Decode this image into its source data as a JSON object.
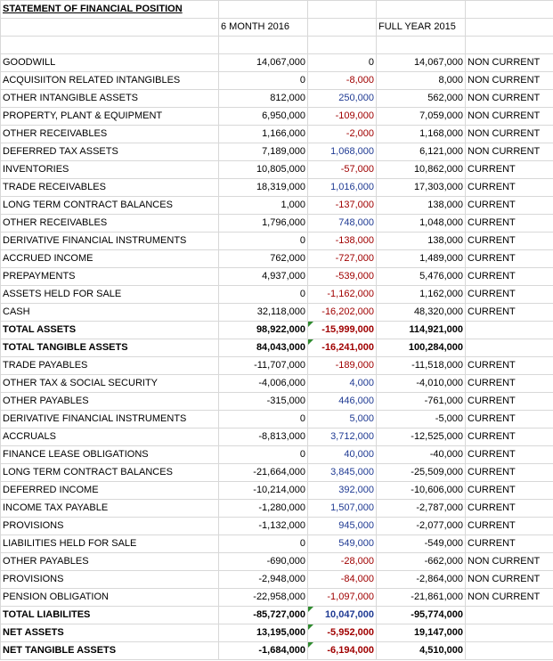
{
  "title": "STATEMENT OF FINANCIAL POSITION",
  "headers": [
    "6 MONTH 2016",
    "FULL YEAR 2015"
  ],
  "table": {
    "rows": [
      [
        "GOODWILL",
        "14,067,000",
        "0",
        "14,067,000",
        "NON CURRENT"
      ],
      [
        "ACQUISIITON RELATED INTANGIBLES",
        "0",
        "-8,000",
        "8,000",
        "NON CURRENT"
      ],
      [
        "OTHER INTANGIBLE ASSETS",
        "812,000",
        "250,000",
        "562,000",
        "NON CURRENT"
      ],
      [
        "PROPERTY, PLANT & EQUIPMENT",
        "6,950,000",
        "-109,000",
        "7,059,000",
        "NON CURRENT"
      ],
      [
        "OTHER RECEIVABLES",
        "1,166,000",
        "-2,000",
        "1,168,000",
        "NON CURRENT"
      ],
      [
        "DEFERRED TAX ASSETS",
        "7,189,000",
        "1,068,000",
        "6,121,000",
        "NON CURRENT"
      ],
      [
        "INVENTORIES",
        "10,805,000",
        "-57,000",
        "10,862,000",
        "CURRENT"
      ],
      [
        "TRADE RECEIVABLES",
        "18,319,000",
        "1,016,000",
        "17,303,000",
        "CURRENT"
      ],
      [
        "LONG TERM CONTRACT BALANCES",
        "1,000",
        "-137,000",
        "138,000",
        "CURRENT"
      ],
      [
        "OTHER RECEIVABLES",
        "1,796,000",
        "748,000",
        "1,048,000",
        "CURRENT"
      ],
      [
        "DERIVATIVE FINANCIAL INSTRUMENTS",
        "0",
        "-138,000",
        "138,000",
        "CURRENT"
      ],
      [
        "ACCRUED INCOME",
        "762,000",
        "-727,000",
        "1,489,000",
        "CURRENT"
      ],
      [
        "PREPAYMENTS",
        "4,937,000",
        "-539,000",
        "5,476,000",
        "CURRENT"
      ],
      [
        "ASSETS HELD FOR SALE",
        "0",
        "-1,162,000",
        "1,162,000",
        "CURRENT"
      ],
      [
        "CASH",
        "32,118,000",
        "-16,202,000",
        "48,320,000",
        "CURRENT"
      ],
      [
        "TOTAL ASSETS",
        "98,922,000",
        "-15,999,000",
        "114,921,000",
        null
      ],
      [
        "TOTAL TANGIBLE ASSETS",
        "84,043,000",
        "-16,241,000",
        "100,284,000",
        null
      ],
      [
        "TRADE PAYABLES",
        "-11,707,000",
        "-189,000",
        "-11,518,000",
        "CURRENT"
      ],
      [
        "OTHER TAX & SOCIAL SECURITY",
        "-4,006,000",
        "4,000",
        "-4,010,000",
        "CURRENT"
      ],
      [
        "OTHER PAYABLES",
        "-315,000",
        "446,000",
        "-761,000",
        "CURRENT"
      ],
      [
        "DERIVATIVE FINANCIAL INSTRUMENTS",
        "0",
        "5,000",
        "-5,000",
        "CURRENT"
      ],
      [
        "ACCRUALS",
        "-8,813,000",
        "3,712,000",
        "-12,525,000",
        "CURRENT"
      ],
      [
        "FINANCE LEASE OBLIGATIONS",
        "0",
        "40,000",
        "-40,000",
        "CURRENT"
      ],
      [
        "LONG TERM CONTRACT BALANCES",
        "-21,664,000",
        "3,845,000",
        "-25,509,000",
        "CURRENT"
      ],
      [
        "DEFERRED INCOME",
        "-10,214,000",
        "392,000",
        "-10,606,000",
        "CURRENT"
      ],
      [
        "INCOME TAX PAYABLE",
        "-1,280,000",
        "1,507,000",
        "-2,787,000",
        "CURRENT"
      ],
      [
        "PROVISIONS",
        "-1,132,000",
        "945,000",
        "-2,077,000",
        "CURRENT"
      ],
      [
        "LIABILITIES HELD FOR SALE",
        "0",
        "549,000",
        "-549,000",
        "CURRENT"
      ],
      [
        "OTHER PAYABLES",
        "-690,000",
        "-28,000",
        "-662,000",
        "NON CURRENT"
      ],
      [
        "PROVISIONS",
        "-2,948,000",
        "-84,000",
        "-2,864,000",
        "NON CURRENT"
      ],
      [
        "PENSION OBLIGATION",
        "-22,958,000",
        "-1,097,000",
        "-21,861,000",
        "NON CURRENT"
      ],
      [
        "TOTAL LIABILITES",
        "-85,727,000",
        "10,047,000",
        "-95,774,000",
        null
      ],
      [
        "NET ASSETS",
        "13,195,000",
        "-5,952,000",
        "19,147,000",
        null
      ],
      [
        "NET TANGIBLE ASSETS",
        "-1,684,000",
        "-6,194,000",
        "4,510,000",
        null
      ]
    ]
  }
}
